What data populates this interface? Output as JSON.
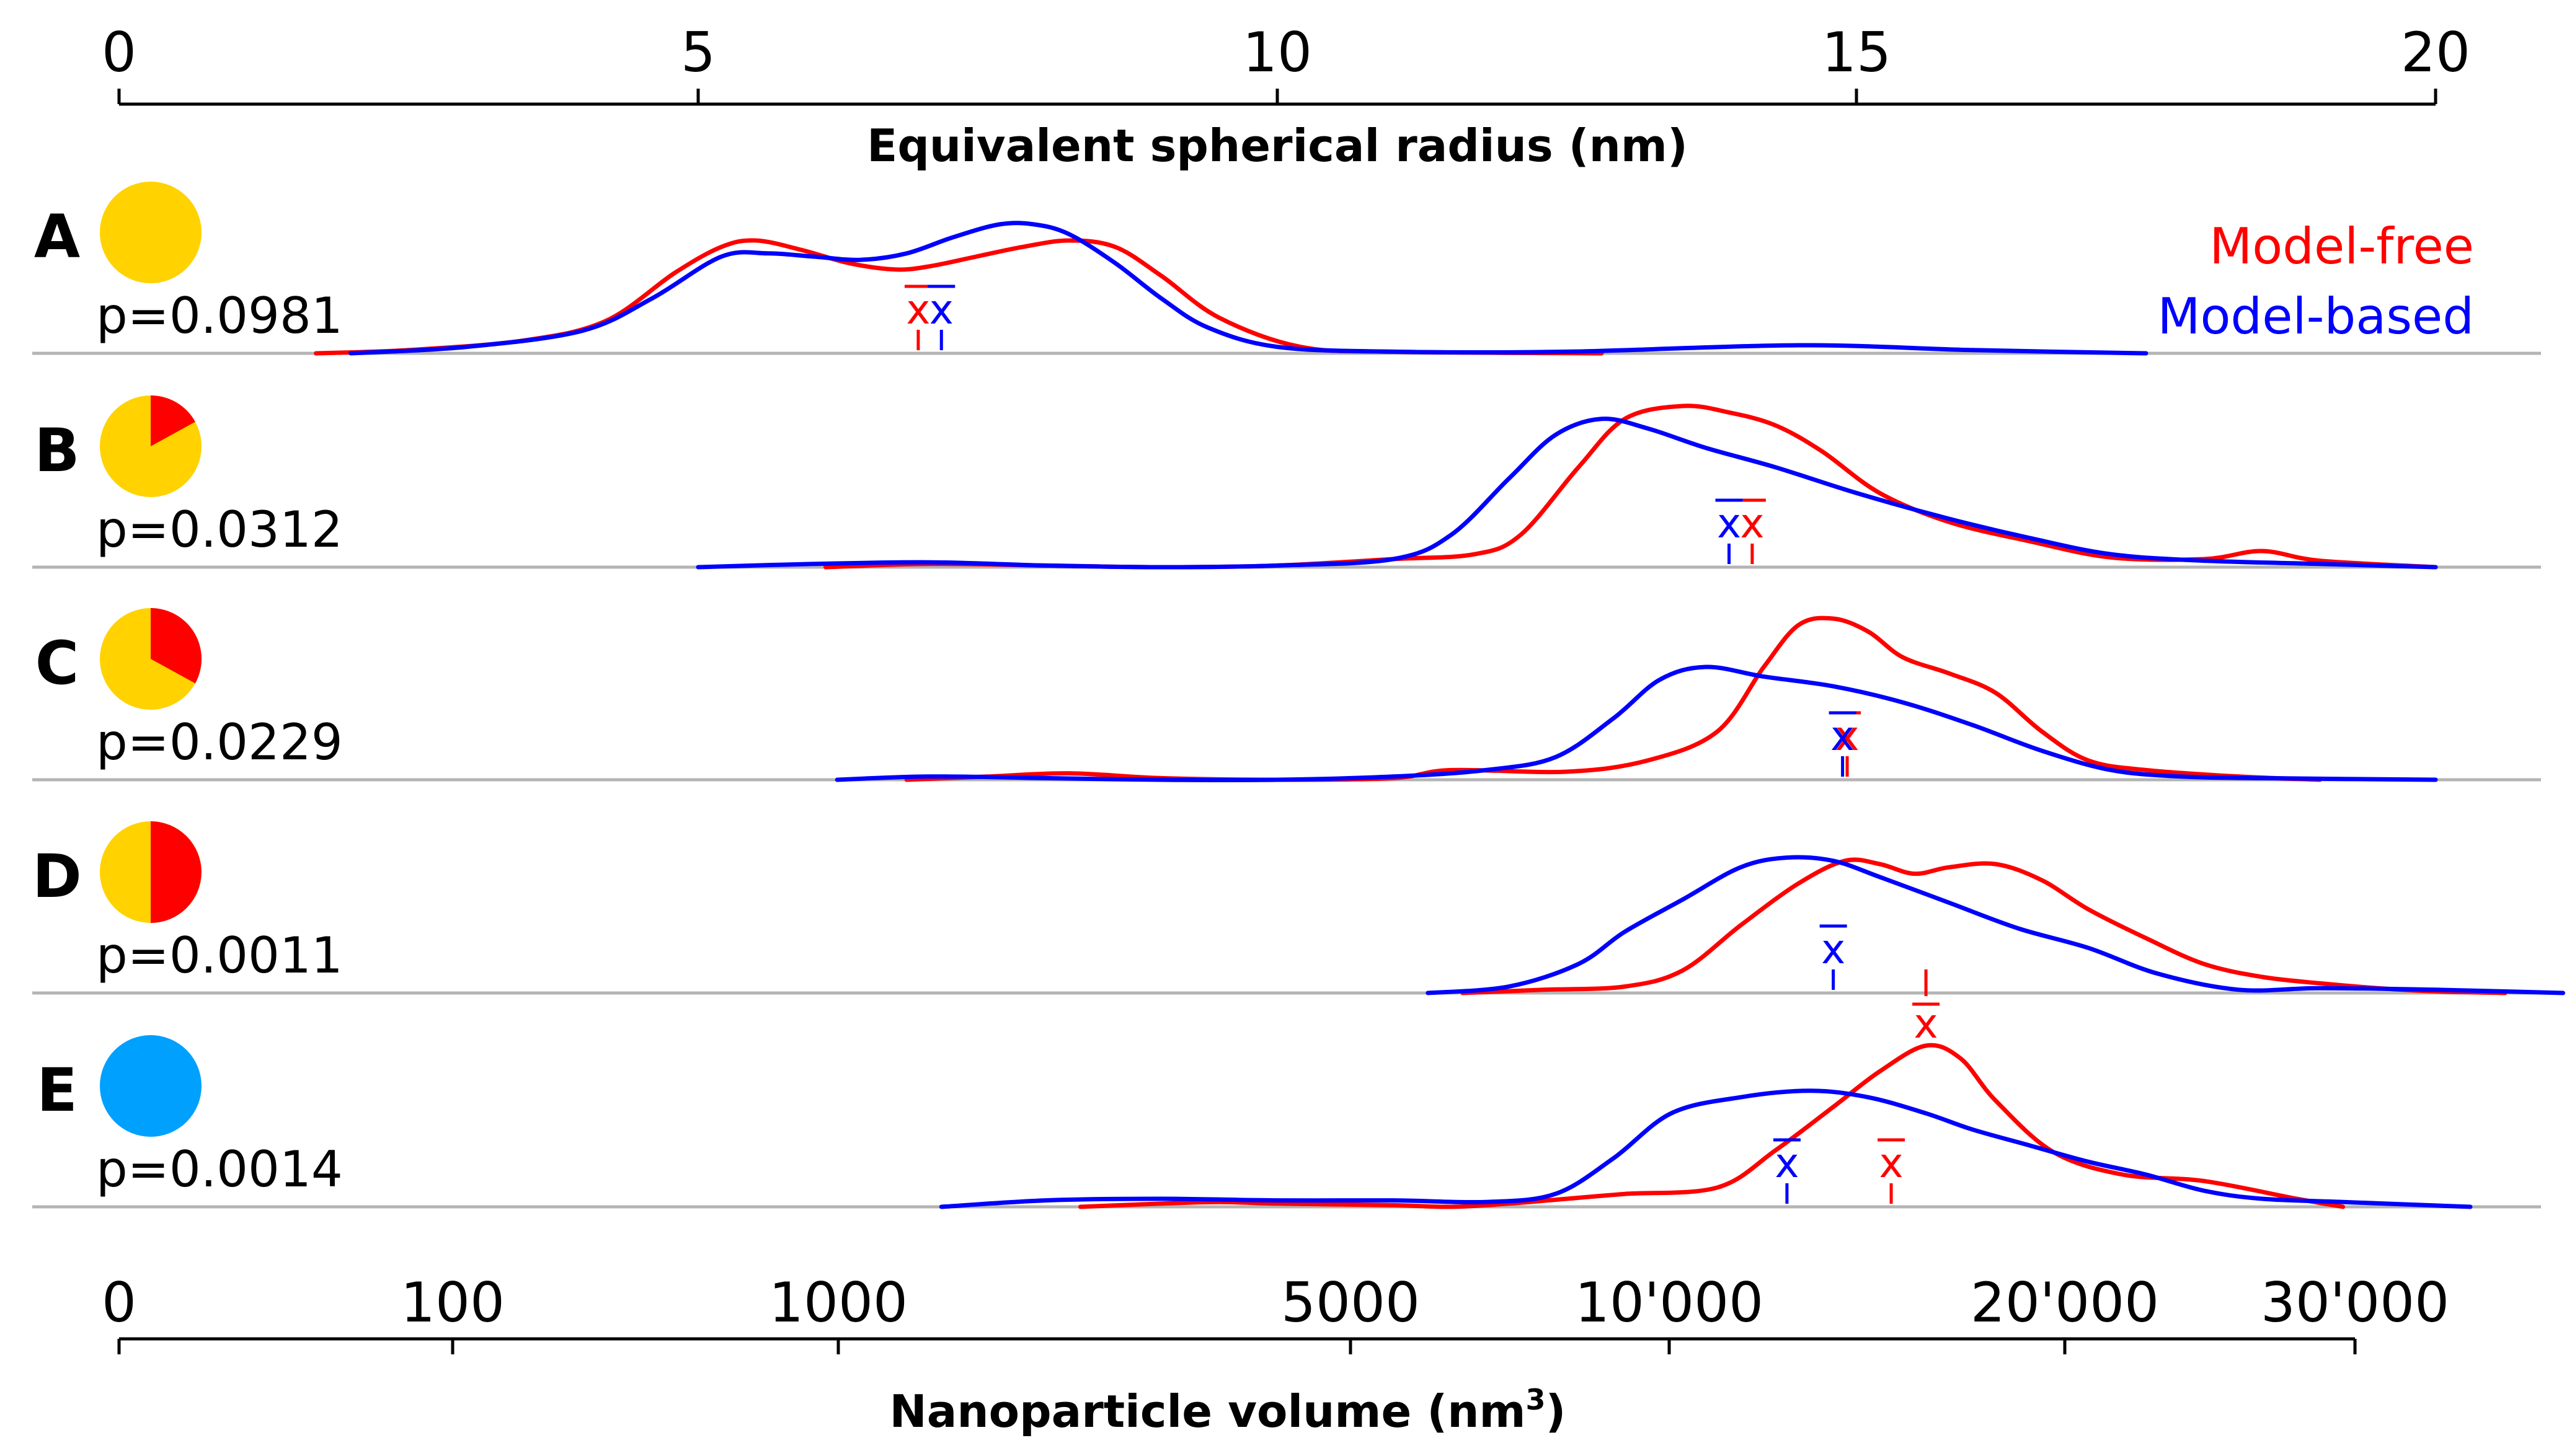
{
  "chart_data": {
    "type": "line",
    "subtype": "stacked-density-ridgeline",
    "top_axis": {
      "title": "Equivalent spherical radius (nm)",
      "range": [
        0,
        20
      ],
      "ticks": [
        0,
        5,
        10,
        15,
        20
      ],
      "tick_labels": [
        "0",
        "5",
        "10",
        "15",
        "20"
      ]
    },
    "bottom_axis": {
      "title": "Nanoparticle volume (nm",
      "title_superscript": "3",
      "title_close": ")",
      "ticks": [
        0,
        100,
        1000,
        5000,
        10000,
        20000,
        30000
      ],
      "tick_labels": [
        "0",
        "100",
        "1000",
        "5000",
        "10'000",
        "20'000",
        "30'000"
      ]
    },
    "legend": {
      "placement": "top-right",
      "entries": [
        {
          "name": "Model-free",
          "color": "#ff0000"
        },
        {
          "name": "Model-based",
          "color": "#0000ff"
        }
      ]
    },
    "mean_symbol": "x",
    "series_colors": {
      "model_free": "#ff0000",
      "model_based": "#0000ff"
    },
    "pie_colors": {
      "yellow": "#ffd200",
      "red": "#ff0000",
      "blue": "#00a0ff"
    },
    "panels": [
      {
        "label": "A",
        "p_label": "p=0.0981",
        "pie": {
          "red_fraction": 0.0,
          "base_color": "#ffd200"
        },
        "mean_radius": {
          "model_free": 6.9,
          "model_based": 7.1
        },
        "mean_label_position": "above",
        "model_free": {
          "x": [
            1.7,
            2.5,
            3.5,
            4.2,
            4.8,
            5.2,
            5.5,
            5.9,
            6.3,
            6.7,
            7.0,
            7.4,
            7.8,
            8.2,
            8.6,
            9.0,
            9.5,
            10.2,
            11.0,
            12.8
          ],
          "y": [
            0,
            0.02,
            0.08,
            0.2,
            0.5,
            0.66,
            0.7,
            0.64,
            0.56,
            0.52,
            0.54,
            0.6,
            0.66,
            0.7,
            0.66,
            0.48,
            0.22,
            0.04,
            0.01,
            0
          ]
        },
        "model_based": {
          "x": [
            2.0,
            3.0,
            4.0,
            4.6,
            5.2,
            5.6,
            6.0,
            6.4,
            6.8,
            7.2,
            7.6,
            7.9,
            8.2,
            8.6,
            9.0,
            9.4,
            10.0,
            11.0,
            12.5,
            14.5,
            16.0,
            17.5
          ],
          "y": [
            0,
            0.04,
            0.14,
            0.34,
            0.6,
            0.62,
            0.6,
            0.58,
            0.62,
            0.72,
            0.8,
            0.8,
            0.74,
            0.56,
            0.34,
            0.16,
            0.04,
            0.01,
            0.01,
            0.05,
            0.02,
            0
          ]
        }
      },
      {
        "label": "B",
        "p_label": "p=0.0312",
        "pie": {
          "red_fraction": 0.17,
          "base_color": "#ffd200"
        },
        "mean_radius": {
          "model_free": 14.1,
          "model_based": 13.9
        },
        "mean_label_position": "above",
        "model_free": {
          "x": [
            6.1,
            7.0,
            8.0,
            9.0,
            10.0,
            11.0,
            11.7,
            12.1,
            12.6,
            13.0,
            13.5,
            13.9,
            14.3,
            14.7,
            15.2,
            15.8,
            16.5,
            17.2,
            18.0,
            18.5,
            19.0,
            20.0
          ],
          "y": [
            0,
            0.02,
            0.01,
            0.0,
            0.01,
            0.05,
            0.08,
            0.2,
            0.62,
            0.92,
            1.0,
            0.96,
            0.88,
            0.72,
            0.46,
            0.28,
            0.16,
            0.06,
            0.05,
            0.1,
            0.04,
            0
          ]
        },
        "model_based": {
          "x": [
            5.0,
            6.0,
            7.0,
            8.0,
            9.0,
            10.0,
            11.0,
            11.5,
            12.0,
            12.4,
            12.8,
            13.2,
            13.7,
            14.3,
            15.0,
            15.8,
            16.5,
            17.2,
            18.0,
            19.0,
            20.0
          ],
          "y": [
            0,
            0.02,
            0.03,
            0.01,
            0.0,
            0.01,
            0.05,
            0.2,
            0.55,
            0.82,
            0.92,
            0.86,
            0.74,
            0.62,
            0.46,
            0.3,
            0.18,
            0.08,
            0.04,
            0.02,
            0
          ]
        }
      },
      {
        "label": "C",
        "p_label": "p=0.0229",
        "pie": {
          "red_fraction": 0.33,
          "base_color": "#ffd200"
        },
        "mean_radius": {
          "model_free": 14.92,
          "model_based": 14.88
        },
        "mean_label_position": "above",
        "model_free": {
          "x": [
            6.8,
            7.5,
            8.2,
            9.0,
            10.0,
            11.0,
            11.5,
            12.5,
            13.2,
            13.8,
            14.2,
            14.5,
            14.8,
            15.1,
            15.4,
            15.8,
            16.2,
            16.6,
            17.0,
            17.5,
            18.3,
            19.0
          ],
          "y": [
            0,
            0.02,
            0.04,
            0.01,
            0.0,
            0.01,
            0.06,
            0.05,
            0.12,
            0.3,
            0.7,
            0.96,
            1.0,
            0.92,
            0.76,
            0.66,
            0.54,
            0.3,
            0.12,
            0.06,
            0.02,
            0
          ]
        },
        "model_based": {
          "x": [
            6.2,
            7.0,
            8.0,
            9.0,
            10.0,
            11.0,
            11.8,
            12.4,
            12.9,
            13.3,
            13.7,
            14.2,
            14.8,
            15.4,
            16.0,
            16.6,
            17.2,
            17.8,
            18.5,
            20.0
          ],
          "y": [
            0,
            0.02,
            0.01,
            0.0,
            0.0,
            0.02,
            0.06,
            0.14,
            0.38,
            0.62,
            0.7,
            0.64,
            0.58,
            0.48,
            0.34,
            0.18,
            0.06,
            0.02,
            0.01,
            0
          ]
        }
      },
      {
        "label": "D",
        "p_label": "p=0.0011",
        "pie": {
          "red_fraction": 0.5,
          "base_color": "#ffd200"
        },
        "mean_radius": {
          "model_free": 15.6,
          "model_based": 14.8
        },
        "mean_label_position": "split",
        "model_free": {
          "x": [
            11.6,
            12.3,
            13.0,
            13.5,
            14.0,
            14.5,
            14.9,
            15.2,
            15.5,
            15.8,
            16.2,
            16.6,
            17.0,
            17.5,
            18.0,
            18.5,
            19.0,
            19.5,
            20.0,
            20.6
          ],
          "y": [
            0,
            0.02,
            0.04,
            0.14,
            0.42,
            0.68,
            0.82,
            0.8,
            0.74,
            0.78,
            0.8,
            0.7,
            0.52,
            0.34,
            0.18,
            0.1,
            0.06,
            0.03,
            0.01,
            0
          ]
        },
        "model_based": {
          "x": [
            11.3,
            12.0,
            12.6,
            13.0,
            13.5,
            14.0,
            14.4,
            14.8,
            15.2,
            15.8,
            16.4,
            17.0,
            17.6,
            18.3,
            19.0,
            20.0,
            21.1
          ],
          "y": [
            0,
            0.04,
            0.18,
            0.38,
            0.58,
            0.78,
            0.84,
            0.82,
            0.72,
            0.56,
            0.4,
            0.28,
            0.12,
            0.02,
            0.03,
            0.02,
            0
          ]
        }
      },
      {
        "label": "E",
        "p_label": "p=0.0014",
        "pie": {
          "red_fraction": 0.0,
          "base_color": "#00a0ff"
        },
        "mean_radius": {
          "model_free": 15.3,
          "model_based": 14.4
        },
        "mean_label_position": "above",
        "model_free": {
          "x": [
            8.3,
            9.0,
            9.5,
            10.0,
            11.0,
            11.5,
            12.0,
            12.5,
            13.0,
            13.8,
            14.3,
            14.8,
            15.2,
            15.6,
            15.9,
            16.2,
            16.7,
            17.3,
            18.0,
            18.8,
            19.2
          ],
          "y": [
            0,
            0.02,
            0.03,
            0.02,
            0.01,
            0.0,
            0.02,
            0.05,
            0.08,
            0.12,
            0.35,
            0.62,
            0.84,
            1.0,
            0.92,
            0.66,
            0.34,
            0.2,
            0.16,
            0.05,
            0
          ]
        },
        "model_based": {
          "x": [
            7.1,
            8.0,
            9.0,
            10.0,
            11.0,
            11.8,
            12.4,
            12.9,
            13.4,
            14.0,
            14.6,
            15.1,
            15.6,
            16.0,
            16.5,
            17.0,
            17.5,
            18.0,
            18.5,
            19.2,
            20.3
          ],
          "y": [
            0,
            0.04,
            0.05,
            0.04,
            0.04,
            0.03,
            0.08,
            0.3,
            0.58,
            0.68,
            0.72,
            0.68,
            0.58,
            0.48,
            0.38,
            0.28,
            0.2,
            0.1,
            0.05,
            0.03,
            0
          ]
        }
      }
    ]
  }
}
